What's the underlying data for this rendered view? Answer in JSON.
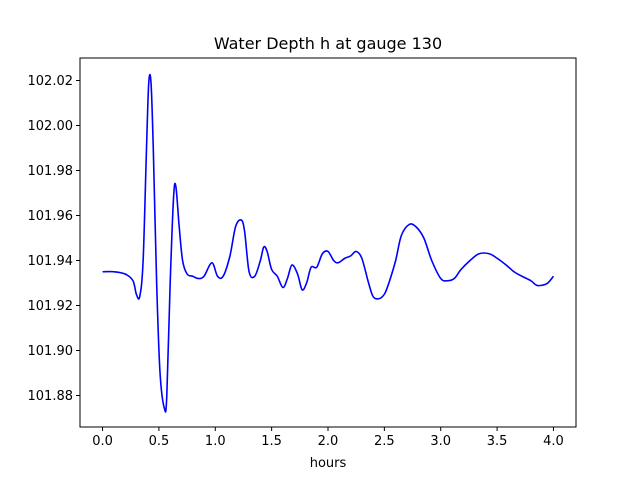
{
  "chart_data": {
    "type": "line",
    "title": "Water Depth h at gauge 130",
    "xlabel": "hours",
    "ylabel": "",
    "xlim": [
      -0.2,
      4.2
    ],
    "ylim": [
      101.866,
      102.03
    ],
    "xticks": [
      "0.0",
      "0.5",
      "1.0",
      "1.5",
      "2.0",
      "2.5",
      "3.0",
      "3.5",
      "4.0"
    ],
    "yticks": [
      "101.88",
      "101.90",
      "101.92",
      "101.94",
      "101.96",
      "101.98",
      "102.00",
      "102.02"
    ],
    "grid": false,
    "series": [
      {
        "color": "#0000ff",
        "x": [
          0.0,
          0.1,
          0.2,
          0.27,
          0.3,
          0.33,
          0.36,
          0.39,
          0.41,
          0.43,
          0.45,
          0.48,
          0.51,
          0.55,
          0.57,
          0.6,
          0.63,
          0.65,
          0.68,
          0.71,
          0.75,
          0.8,
          0.85,
          0.9,
          0.97,
          1.02,
          1.07,
          1.13,
          1.18,
          1.23,
          1.26,
          1.3,
          1.35,
          1.4,
          1.43,
          1.46,
          1.5,
          1.55,
          1.6,
          1.64,
          1.68,
          1.73,
          1.77,
          1.81,
          1.85,
          1.9,
          1.95,
          2.0,
          2.05,
          2.09,
          2.15,
          2.2,
          2.25,
          2.3,
          2.36,
          2.4,
          2.45,
          2.5,
          2.54,
          2.6,
          2.65,
          2.72,
          2.78,
          2.85,
          2.92,
          3.0,
          3.06,
          3.12,
          3.18,
          3.26,
          3.34,
          3.43,
          3.5,
          3.58,
          3.65,
          3.72,
          3.8,
          3.85,
          3.9,
          3.95,
          4.0
        ],
        "y": [
          101.935,
          101.935,
          101.934,
          101.931,
          101.925,
          101.924,
          101.94,
          101.99,
          102.019,
          102.019,
          101.99,
          101.93,
          101.89,
          101.874,
          101.88,
          101.93,
          101.968,
          101.973,
          101.955,
          101.94,
          101.934,
          101.933,
          101.932,
          101.933,
          101.939,
          101.933,
          101.933,
          101.942,
          101.955,
          101.958,
          101.953,
          101.935,
          101.933,
          101.94,
          101.946,
          101.944,
          101.936,
          101.933,
          101.928,
          101.932,
          101.938,
          101.934,
          101.927,
          101.93,
          101.937,
          101.937,
          101.943,
          101.944,
          101.94,
          101.939,
          101.941,
          101.942,
          101.944,
          101.941,
          101.93,
          101.924,
          101.923,
          101.925,
          101.93,
          101.94,
          101.951,
          101.956,
          101.955,
          101.95,
          101.94,
          101.932,
          101.931,
          101.932,
          101.936,
          101.94,
          101.943,
          101.943,
          101.941,
          101.938,
          101.935,
          101.933,
          101.931,
          101.929,
          101.929,
          101.93,
          101.933
        ]
      }
    ]
  }
}
